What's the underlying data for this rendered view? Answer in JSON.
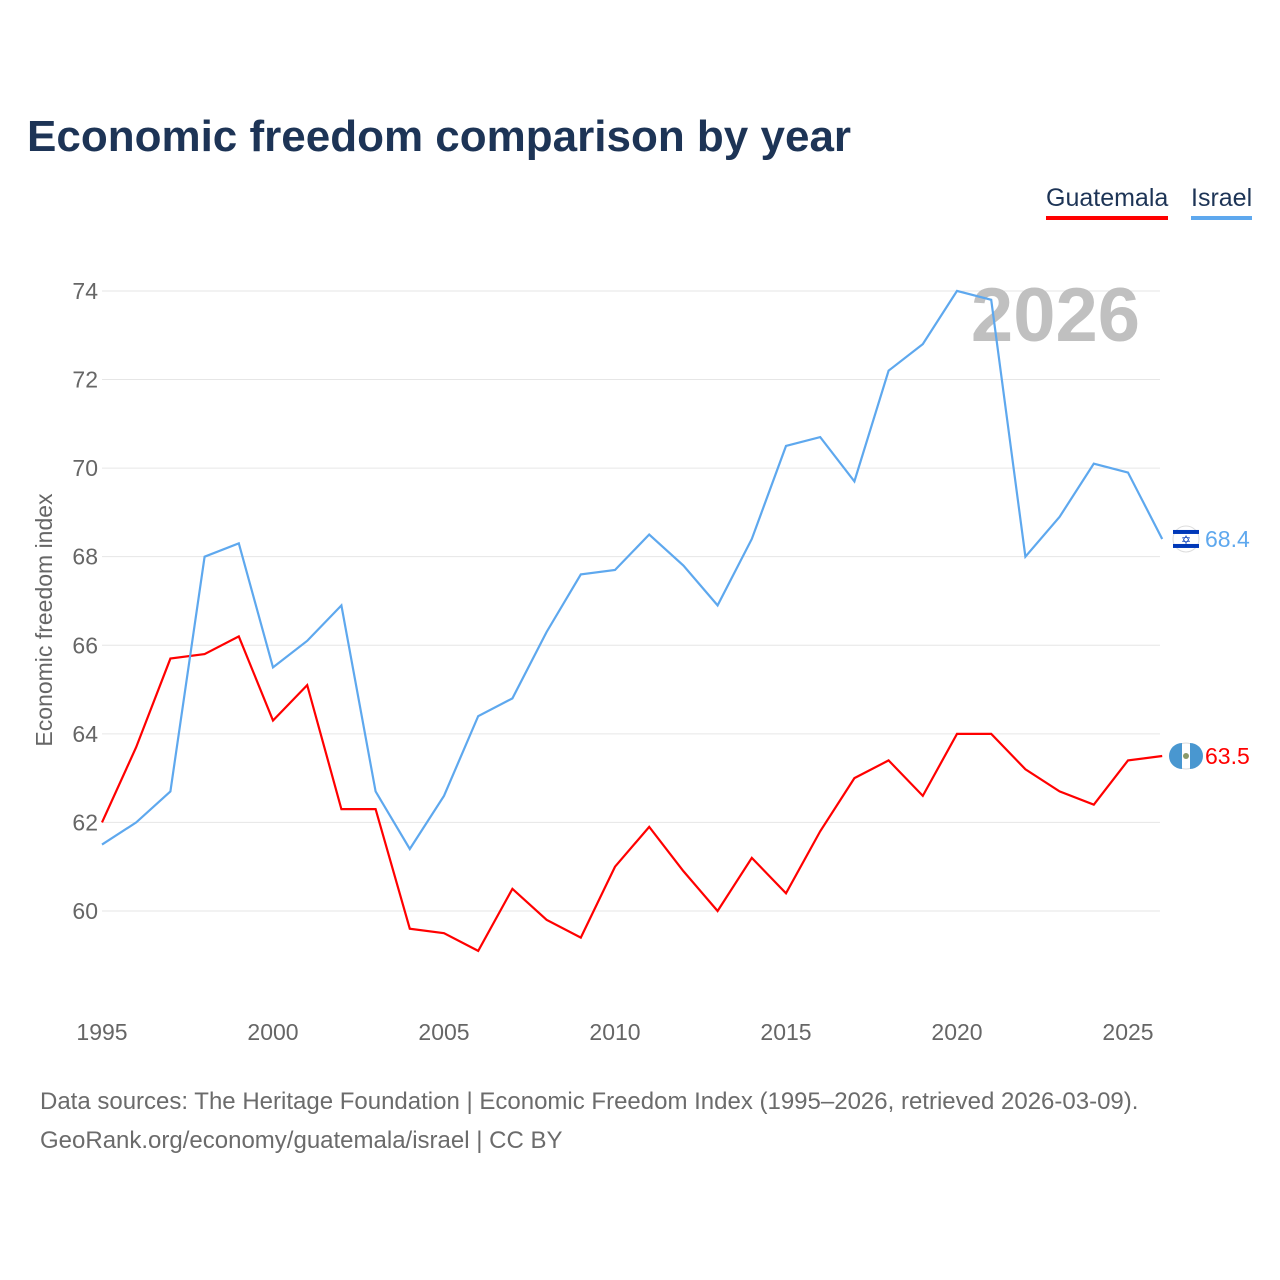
{
  "chart_data": {
    "type": "line",
    "title": "Economic freedom comparison by year",
    "xlabel": "",
    "ylabel": "Economic freedom index",
    "watermark_year": "2026",
    "x": [
      1995,
      1996,
      1997,
      1998,
      1999,
      2000,
      2001,
      2002,
      2003,
      2004,
      2005,
      2006,
      2007,
      2008,
      2009,
      2010,
      2011,
      2012,
      2013,
      2014,
      2015,
      2016,
      2017,
      2018,
      2019,
      2020,
      2021,
      2022,
      2023,
      2024,
      2025,
      2026
    ],
    "xticks": [
      "1995",
      "2000",
      "2005",
      "2010",
      "2015",
      "2020",
      "2025"
    ],
    "yticks": [
      "60",
      "62",
      "64",
      "66",
      "68",
      "70",
      "72",
      "74"
    ],
    "ylim": [
      57.8,
      74
    ],
    "grid": true,
    "legend_position": "top-right",
    "series": [
      {
        "name": "Guatemala",
        "color": "#ff0000",
        "end_label": "63.5",
        "values": [
          62.0,
          63.7,
          65.7,
          65.8,
          66.2,
          64.3,
          65.1,
          62.3,
          62.3,
          59.6,
          59.5,
          59.1,
          60.5,
          59.8,
          59.4,
          61.0,
          61.9,
          60.9,
          60.0,
          61.2,
          60.4,
          61.8,
          63.0,
          63.4,
          62.6,
          64.0,
          64.0,
          63.2,
          62.7,
          62.4,
          63.4,
          63.5
        ]
      },
      {
        "name": "Israel",
        "color": "#5ea8ee",
        "end_label": "68.4",
        "values": [
          61.5,
          62.0,
          62.7,
          68.0,
          68.3,
          65.5,
          66.1,
          66.9,
          62.7,
          61.4,
          62.6,
          64.4,
          64.8,
          66.3,
          67.6,
          67.7,
          68.5,
          67.8,
          66.9,
          68.4,
          70.5,
          70.7,
          69.7,
          72.2,
          72.8,
          74.0,
          73.8,
          68.0,
          68.9,
          70.1,
          69.9,
          68.4
        ]
      }
    ]
  },
  "footer": {
    "line1": "Data sources: The Heritage Foundation | Economic Freedom Index (1995–2026, retrieved 2026-03-09).",
    "line2": "GeoRank.org/economy/guatemala/israel | CC BY"
  }
}
